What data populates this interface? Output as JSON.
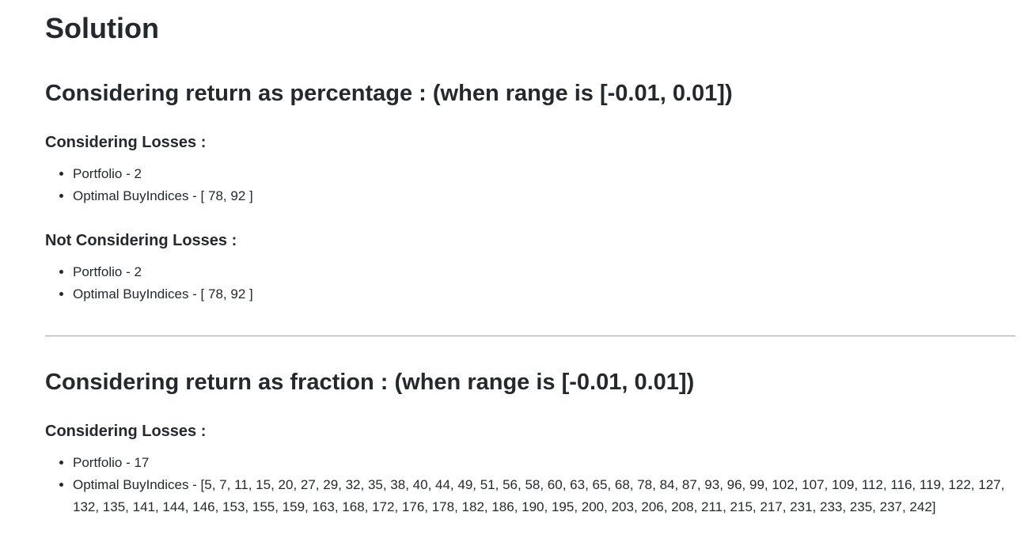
{
  "doc": {
    "title": "Solution",
    "sections": [
      {
        "heading": "Considering return as percentage : (when range is [-0.01, 0.01])",
        "groups": [
          {
            "heading": "Considering Losses :",
            "items": [
              "Portfolio - 2",
              "Optimal BuyIndices - [ 78, 92 ]"
            ]
          },
          {
            "heading": "Not Considering Losses :",
            "items": [
              "Portfolio - 2",
              "Optimal BuyIndices - [ 78, 92 ]"
            ]
          }
        ]
      },
      {
        "heading": "Considering return as fraction : (when range is [-0.01, 0.01])",
        "groups": [
          {
            "heading": "Considering Losses :",
            "items": [
              "Portfolio - 17",
              "Optimal BuyIndices - [5, 7, 11, 15, 20, 27, 29, 32, 35, 38, 40, 44, 49, 51, 56, 58, 60, 63, 65, 68, 78, 84, 87, 93, 96, 99, 102, 107, 109, 112, 116, 119, 122, 127, 132, 135, 141, 144, 146, 153, 155, 159, 163, 168, 172, 176, 178, 182, 186, 190, 195, 200, 203, 206, 208, 211, 215, 217, 231, 233, 235, 237, 242]"
            ]
          }
        ]
      }
    ]
  }
}
